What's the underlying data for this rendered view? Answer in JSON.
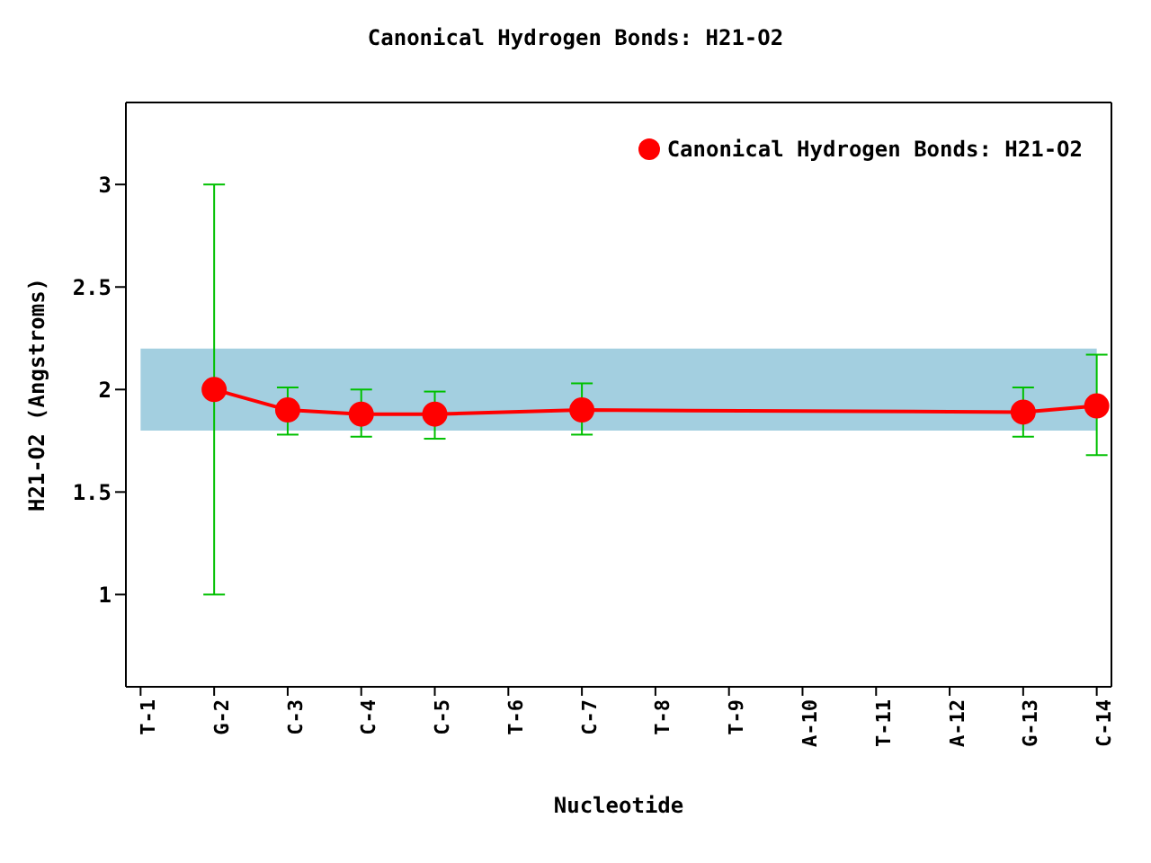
{
  "chart_data": {
    "type": "line",
    "title": "Canonical Hydrogen Bonds: H21-O2",
    "xlabel": "Nucleotide",
    "ylabel": "H21-O2 (Angstroms)",
    "categories": [
      "T-1",
      "G-2",
      "C-3",
      "C-4",
      "C-5",
      "T-6",
      "C-7",
      "T-8",
      "T-9",
      "A-10",
      "T-11",
      "A-12",
      "G-13",
      "C-14"
    ],
    "series": [
      {
        "name": "Canonical Hydrogen Bonds: H21-O2",
        "color": "#ff0000",
        "values": [
          null,
          2.0,
          1.9,
          1.88,
          1.88,
          null,
          1.9,
          null,
          null,
          null,
          null,
          null,
          1.89,
          1.92
        ],
        "errors": [
          null,
          [
            1.0,
            3.0
          ],
          [
            1.78,
            2.01
          ],
          [
            1.77,
            2.0
          ],
          [
            1.76,
            1.99
          ],
          null,
          [
            1.78,
            2.03
          ],
          null,
          null,
          null,
          null,
          null,
          [
            1.77,
            2.01
          ],
          [
            1.68,
            2.17
          ]
        ]
      }
    ],
    "ylim": [
      0.55,
      3.4
    ],
    "yticks": [
      1,
      1.5,
      2,
      2.5,
      3
    ],
    "bands": [
      {
        "axis": "y",
        "from": 1.8,
        "to": 2.2,
        "color": "#a3cfe0"
      }
    ],
    "legend": "top right",
    "marker": "circle",
    "line_style": "solid"
  }
}
